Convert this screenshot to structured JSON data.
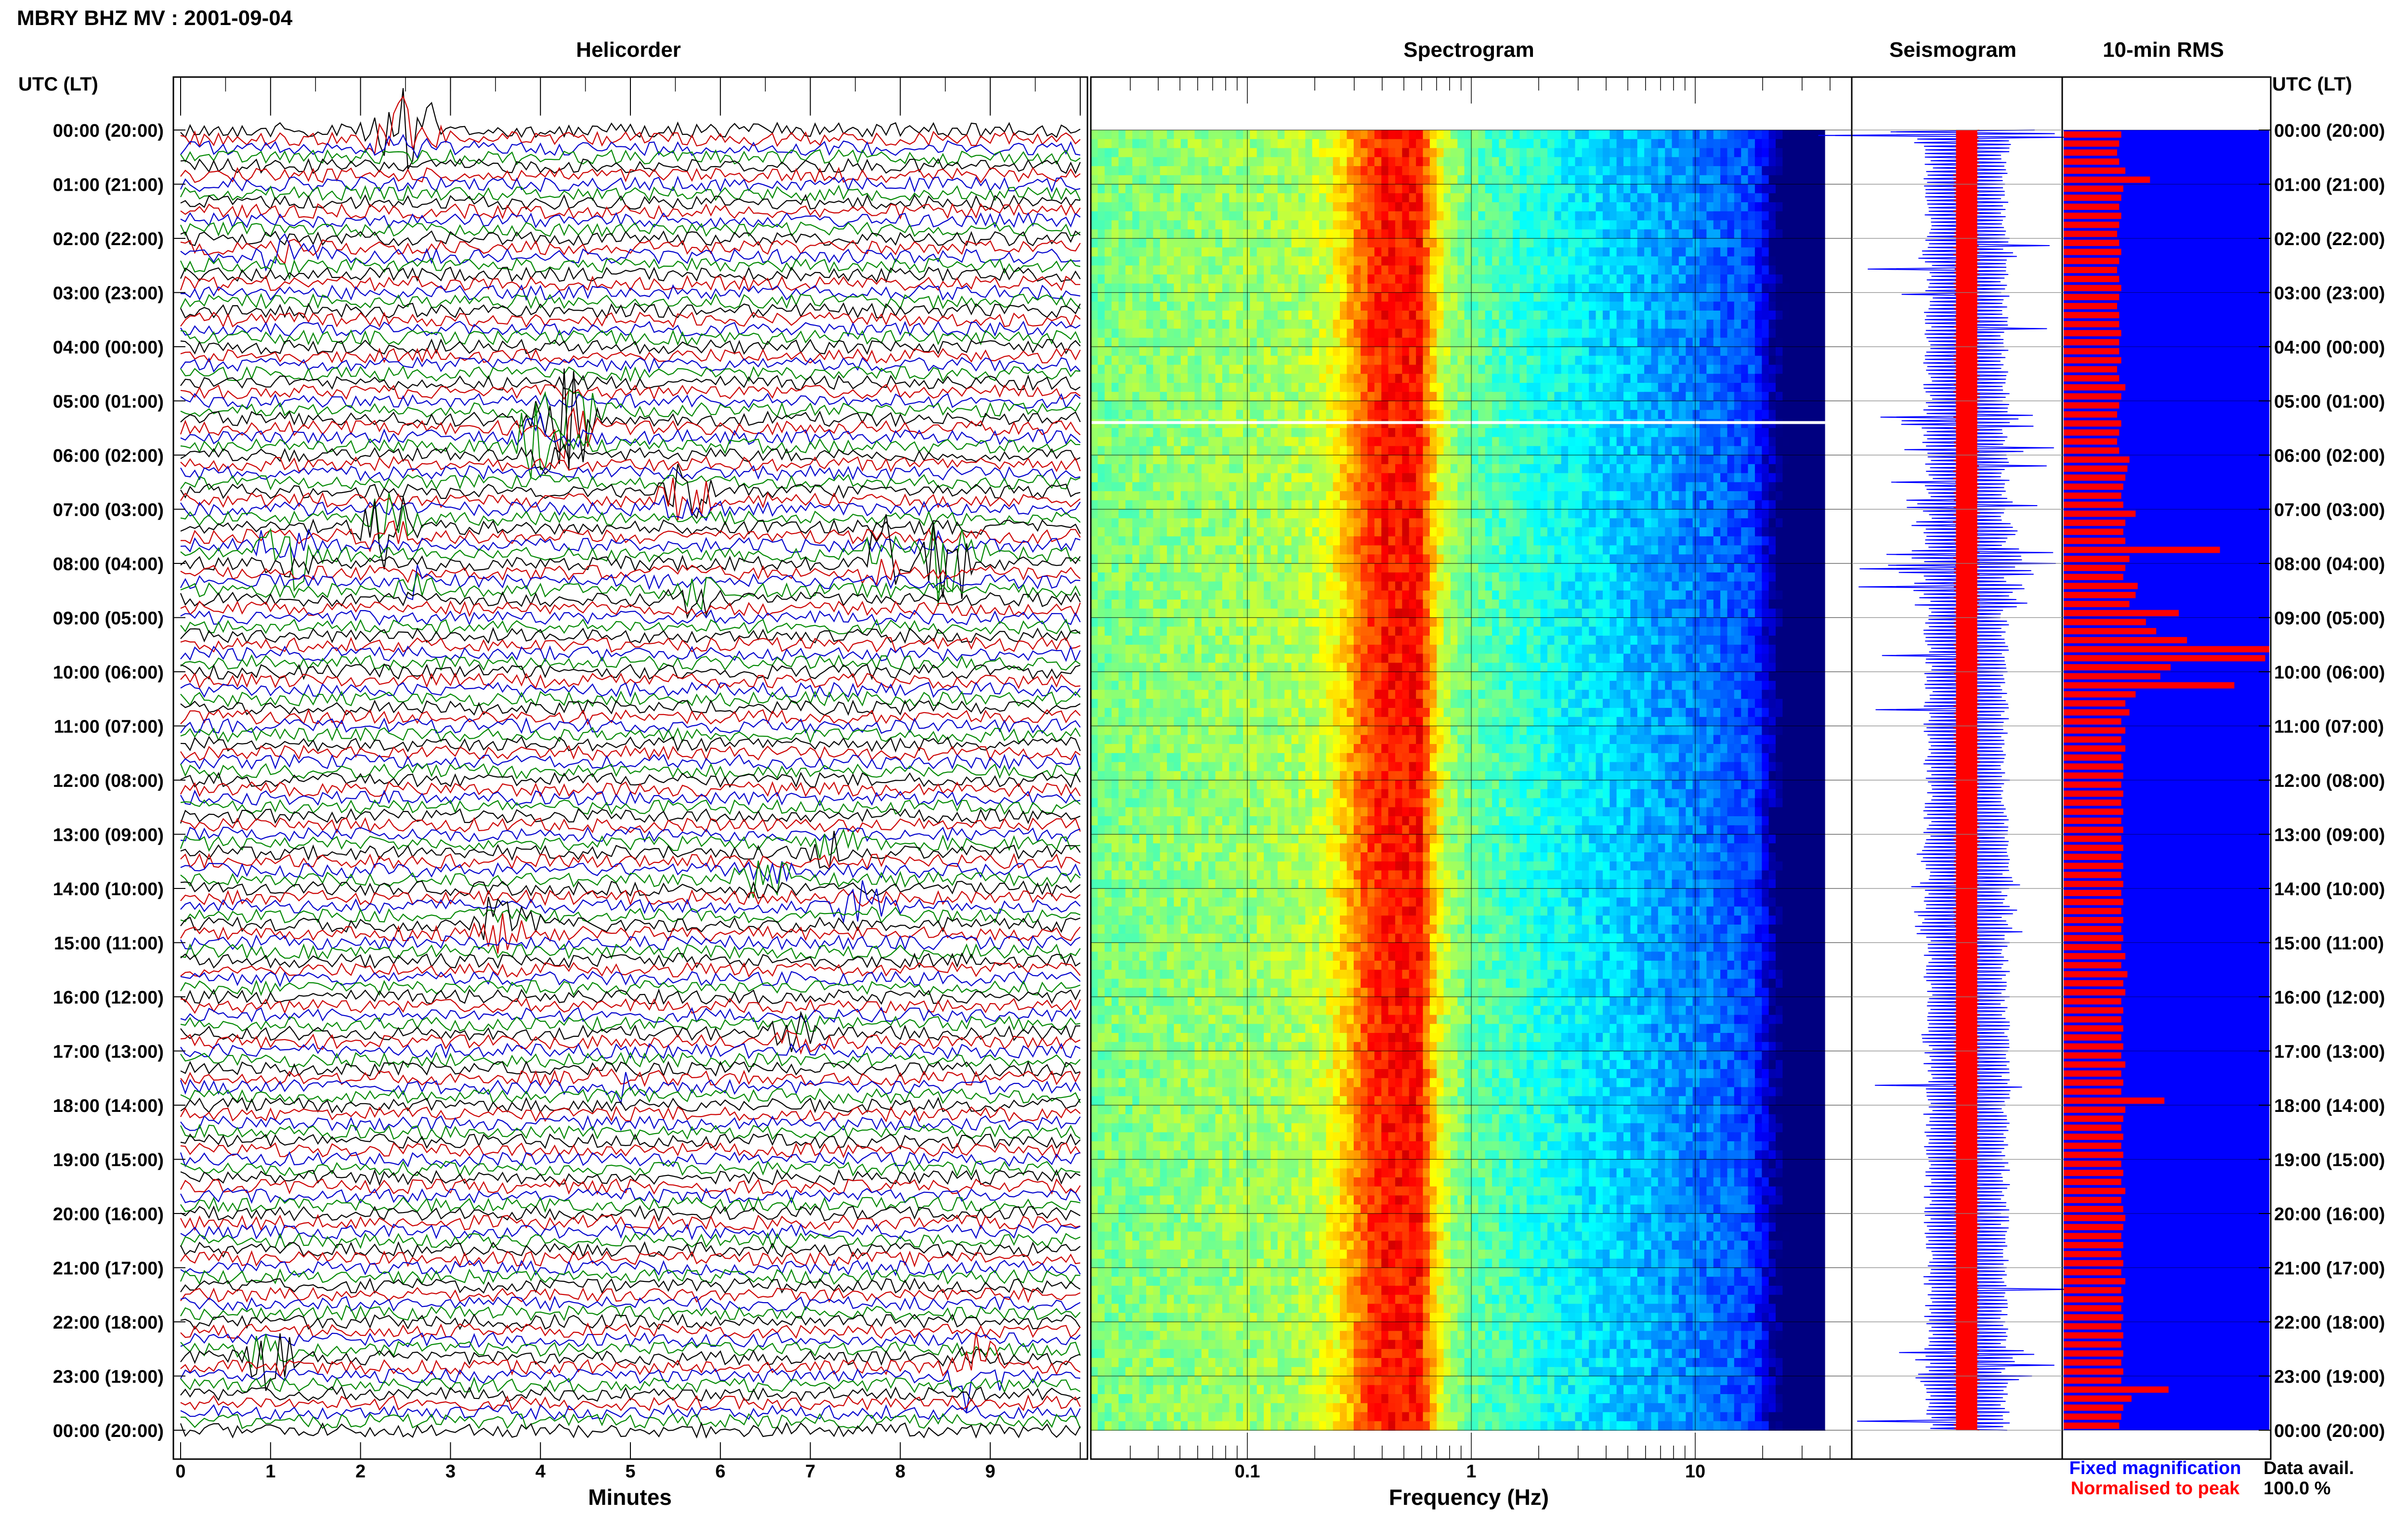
{
  "header": {
    "title": "MBRY BHZ MV : 2001-09-04",
    "left_axis_label": "UTC (LT)",
    "right_axis_label": "UTC (LT)"
  },
  "panels": {
    "helicorder": "Helicorder",
    "spectrogram": "Spectrogram",
    "seismogram": "Seismogram",
    "rms": "10-min RMS"
  },
  "time_labels": [
    "00:00 (20:00)",
    "01:00 (21:00)",
    "02:00 (22:00)",
    "03:00 (23:00)",
    "04:00 (00:00)",
    "05:00 (01:00)",
    "06:00 (02:00)",
    "07:00 (03:00)",
    "08:00 (04:00)",
    "09:00 (05:00)",
    "10:00 (06:00)",
    "11:00 (07:00)",
    "12:00 (08:00)",
    "13:00 (09:00)",
    "14:00 (10:00)",
    "15:00 (11:00)",
    "16:00 (12:00)",
    "17:00 (13:00)",
    "18:00 (14:00)",
    "19:00 (15:00)",
    "20:00 (16:00)",
    "21:00 (17:00)",
    "22:00 (18:00)",
    "23:00 (19:00)",
    "00:00 (20:00)"
  ],
  "legend": {
    "fixed": "Fixed magnification",
    "normalised": "Normalised to peak",
    "fixed_color": "#0000ff",
    "normalised_color": "#ff0000"
  },
  "data_availability": {
    "label": "Data avail.",
    "value": "100.0 %"
  },
  "colors": {
    "trace_cycle": [
      "#000000",
      "#cc0000",
      "#0000cc",
      "#008800"
    ],
    "rms_background": "#0000ff",
    "rms_bar": "#ff0000",
    "seismo_fixed": "#0000ff",
    "seismo_norm": "#ff0000"
  },
  "chart_data": [
    {
      "type": "line",
      "title": "Helicorder",
      "xlabel": "Minutes",
      "x_ticks": [
        "0",
        "1",
        "2",
        "3",
        "4",
        "5",
        "6",
        "7",
        "8",
        "9"
      ],
      "xlim": [
        0,
        10
      ],
      "traces_per_hour": 6,
      "rows": 144,
      "events": [
        {
          "hour": 0.0,
          "minute": 2.5,
          "amp": 1.6
        },
        {
          "hour": 0.1,
          "minute": 2.5,
          "amp": 2.2
        },
        {
          "hour": 2.3,
          "minute": 1.2,
          "amp": 0.8
        },
        {
          "hour": 5.3,
          "minute": 4.3,
          "amp": 3.5
        },
        {
          "hour": 5.8,
          "minute": 4.0,
          "amp": 1.8
        },
        {
          "hour": 6.8,
          "minute": 5.6,
          "amp": 1.8
        },
        {
          "hour": 7.3,
          "minute": 2.3,
          "amp": 2.0
        },
        {
          "hour": 7.8,
          "minute": 1.2,
          "amp": 1.8
        },
        {
          "hour": 7.9,
          "minute": 8.5,
          "amp": 2.6
        },
        {
          "hour": 8.0,
          "minute": 7.8,
          "amp": 1.6
        },
        {
          "hour": 8.4,
          "minute": 2.6,
          "amp": 1.0
        },
        {
          "hour": 8.6,
          "minute": 5.7,
          "amp": 1.0
        },
        {
          "hour": 13.3,
          "minute": 7.2,
          "amp": 0.8
        },
        {
          "hour": 13.8,
          "minute": 6.5,
          "amp": 1.0
        },
        {
          "hour": 14.3,
          "minute": 7.6,
          "amp": 0.9
        },
        {
          "hour": 14.7,
          "minute": 3.6,
          "amp": 1.2
        },
        {
          "hour": 16.7,
          "minute": 6.8,
          "amp": 0.7
        },
        {
          "hour": 17.6,
          "minute": 4.9,
          "amp": 0.7
        },
        {
          "hour": 22.6,
          "minute": 1.0,
          "amp": 1.4
        },
        {
          "hour": 22.9,
          "minute": 8.8,
          "amp": 1.6
        }
      ]
    },
    {
      "type": "heatmap",
      "title": "Spectrogram",
      "xlabel": "Frequency (Hz)",
      "x_scale": "log",
      "xlim": [
        0.02,
        50
      ],
      "x_ticks": [
        0.1,
        1,
        10
      ],
      "x_tick_labels": [
        "0.1",
        "1",
        "10"
      ],
      "peak_frequency_hz": 0.4,
      "gap_hour": 5.4
    },
    {
      "type": "line",
      "title": "Seismogram",
      "series": [
        {
          "name": "Fixed magnification"
        },
        {
          "name": "Normalised to peak"
        }
      ]
    },
    {
      "type": "bar",
      "title": "10-min RMS",
      "bins": 144,
      "values": [
        0.28,
        0.27,
        0.26,
        0.27,
        0.3,
        0.42,
        0.29,
        0.28,
        0.27,
        0.28,
        0.27,
        0.26,
        0.27,
        0.28,
        0.27,
        0.26,
        0.27,
        0.28,
        0.27,
        0.26,
        0.27,
        0.27,
        0.28,
        0.27,
        0.27,
        0.28,
        0.26,
        0.27,
        0.3,
        0.28,
        0.27,
        0.26,
        0.28,
        0.27,
        0.26,
        0.27,
        0.32,
        0.31,
        0.3,
        0.29,
        0.28,
        0.29,
        0.35,
        0.3,
        0.29,
        0.3,
        0.76,
        0.32,
        0.3,
        0.29,
        0.36,
        0.35,
        0.32,
        0.56,
        0.4,
        0.45,
        0.6,
        1.0,
        0.98,
        0.52,
        0.47,
        0.83,
        0.35,
        0.3,
        0.32,
        0.28,
        0.3,
        0.28,
        0.3,
        0.28,
        0.29,
        0.29,
        0.28,
        0.29,
        0.28,
        0.29,
        0.28,
        0.29,
        0.28,
        0.29,
        0.28,
        0.29,
        0.28,
        0.29,
        0.28,
        0.29,
        0.28,
        0.29,
        0.28,
        0.29,
        0.28,
        0.3,
        0.28,
        0.31,
        0.29,
        0.3,
        0.28,
        0.29,
        0.28,
        0.29,
        0.28,
        0.29,
        0.28,
        0.3,
        0.28,
        0.29,
        0.28,
        0.49,
        0.3,
        0.29,
        0.28,
        0.29,
        0.28,
        0.29,
        0.28,
        0.29,
        0.28,
        0.3,
        0.28,
        0.29,
        0.3,
        0.29,
        0.28,
        0.29,
        0.28,
        0.29,
        0.28,
        0.3,
        0.28,
        0.29,
        0.28,
        0.29,
        0.28,
        0.29,
        0.28,
        0.29,
        0.28,
        0.29,
        0.28,
        0.51,
        0.33,
        0.29,
        0.28,
        0.27
      ]
    }
  ]
}
